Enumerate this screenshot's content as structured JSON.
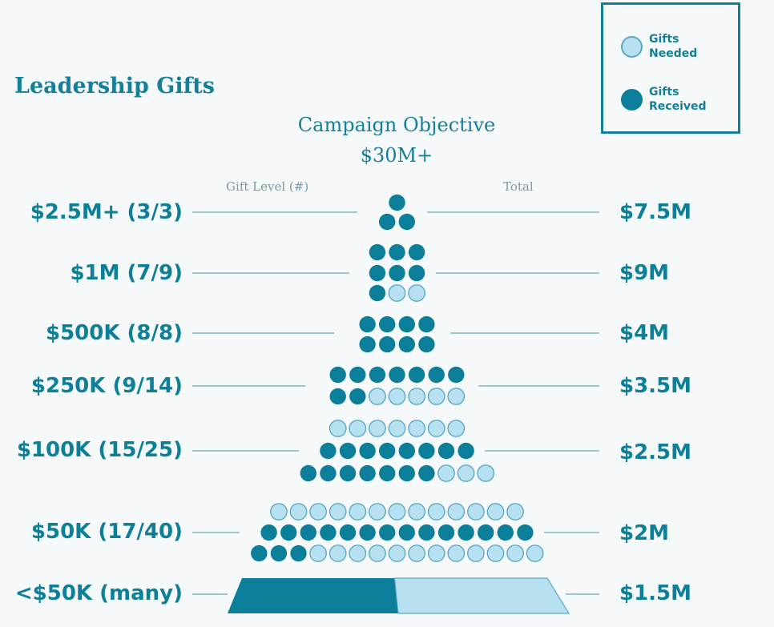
{
  "title": "Leadership Gifts",
  "objective": {
    "line1": "Campaign Objective",
    "line2": "$30M+"
  },
  "column_headers": {
    "left": "Gift Level (#)",
    "right": "Total"
  },
  "legend": {
    "needed": "Gifts Needed",
    "received": "Gifts Received"
  },
  "colors": {
    "received": "#0b7f9a",
    "needed": "#b7e1f1",
    "needed_border": "#5aaac6",
    "text": "#0e7f99",
    "line": "#7fb6c7"
  },
  "chart_data": {
    "type": "pictogram",
    "title": "Leadership Gifts",
    "levels": [
      {
        "label": "$2.5M+ (3/3)",
        "total": "$7.5M",
        "received": 3,
        "needed": 3
      },
      {
        "label": "$1M (7/9)",
        "total": "$9M",
        "received": 7,
        "needed": 9
      },
      {
        "label": "$500K (8/8)",
        "total": "$4M",
        "received": 8,
        "needed": 8
      },
      {
        "label": "$250K (9/14)",
        "total": "$3.5M",
        "received": 9,
        "needed": 14
      },
      {
        "label": "$100K (15/25)",
        "total": "$2.5M",
        "received": 15,
        "needed": 25
      },
      {
        "label": "$50K (17/40)",
        "total": "$2M",
        "received": 17,
        "needed": 40
      },
      {
        "label": "<$50K (many)",
        "total": "$1.5M",
        "received_fraction": 0.5
      }
    ]
  }
}
